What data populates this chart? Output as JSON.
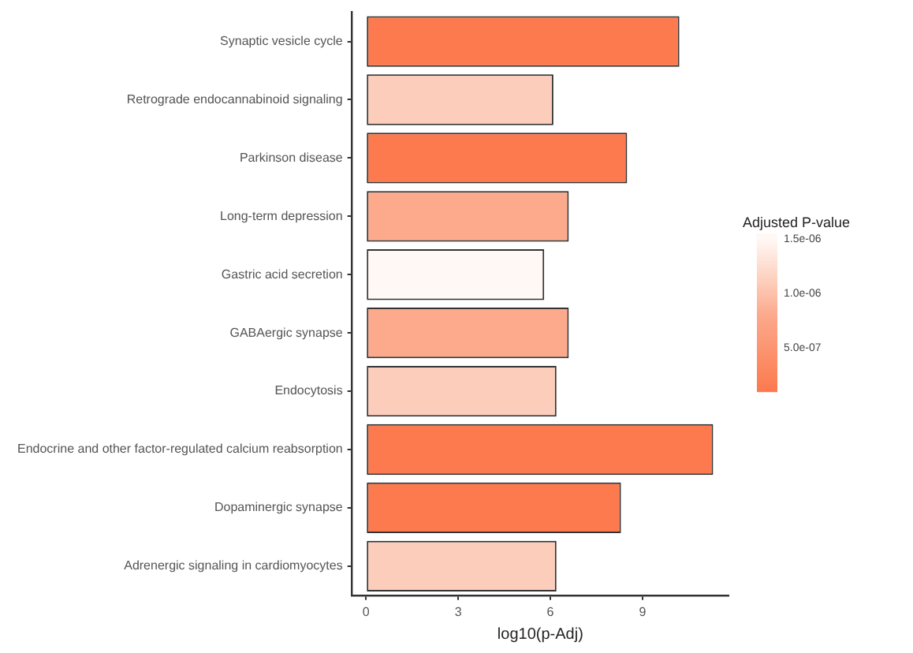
{
  "chart_data": {
    "type": "bar",
    "orientation": "horizontal",
    "xlabel": "log10(p-Adj)",
    "clabel": "Adjusted P-value",
    "categories": [
      "Synaptic vesicle cycle",
      "Retrograde endocannabinoid signaling",
      "Parkinson disease",
      "Long-term depression",
      "Gastric acid secretion",
      "GABAergic synapse",
      "Endocytosis",
      "Endocrine and other factor-regulated calcium reabsorption",
      "Dopaminergic synapse",
      "Adrenergic signaling in cardiomyocytes"
    ],
    "values": [
      10.2,
      6.1,
      8.5,
      6.6,
      5.8,
      6.6,
      6.2,
      11.3,
      8.3,
      6.2
    ],
    "cvalues": [
      1e-07,
      1.1e-06,
      1e-07,
      8e-07,
      1.5e-06,
      8e-07,
      1.1e-06,
      1e-07,
      1e-07,
      1.1e-06
    ],
    "colors": [
      "#fc7a4e",
      "#fdcdbb",
      "#fc7a4e",
      "#fca98c",
      "#fff8f4",
      "#fca98c",
      "#fdcdbb",
      "#fc7a4e",
      "#fc7a4e",
      "#fdcdbb"
    ],
    "xlim": [
      -0.45,
      11.8
    ],
    "xticks": [
      0,
      3,
      6,
      9
    ],
    "clim": [
      1e-07,
      1.55e-06
    ],
    "cticks": [
      {
        "value": 1.5e-06,
        "label": "1.5e-06"
      },
      {
        "value": 1e-06,
        "label": "1.0e-06"
      },
      {
        "value": 5e-07,
        "label": "5.0e-07"
      }
    ]
  }
}
